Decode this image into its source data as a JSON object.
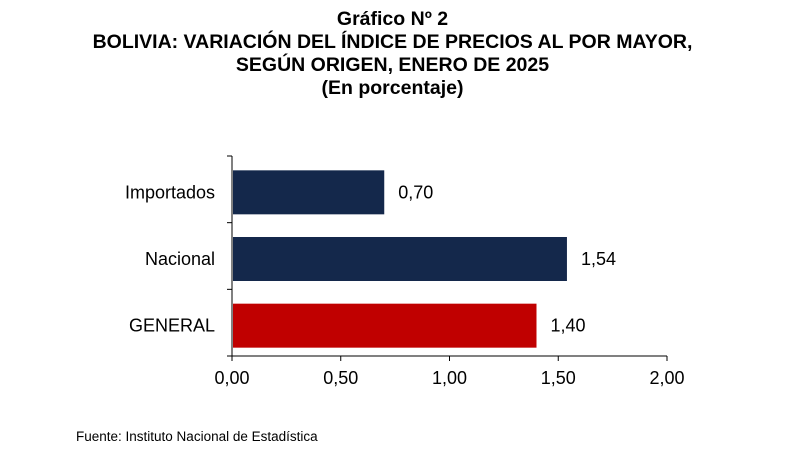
{
  "chart_data": {
    "type": "bar",
    "orientation": "horizontal",
    "title_lines": [
      "Gráfico Nº 2",
      "BOLIVIA: VARIACIÓN DEL ÍNDICE DE PRECIOS AL POR MAYOR,",
      "SEGÚN ORIGEN, ENERO DE 2025",
      "(En porcentaje)"
    ],
    "categories": [
      "Importados",
      "Nacional",
      "GENERAL"
    ],
    "values": [
      0.7,
      1.54,
      1.4
    ],
    "value_labels": [
      "0,70",
      "1,54",
      "1,40"
    ],
    "bar_colors": [
      "#14284b",
      "#14284b",
      "#c00000"
    ],
    "xlim": [
      0,
      2
    ],
    "x_ticks": [
      0,
      0.5,
      1,
      1.5,
      2
    ],
    "x_tick_labels": [
      "0,00",
      "0,50",
      "1,00",
      "1,50",
      "2,00"
    ],
    "grid": false,
    "legend": "none"
  },
  "footer": {
    "source": "Fuente: Instituto Nacional de Estadística"
  }
}
